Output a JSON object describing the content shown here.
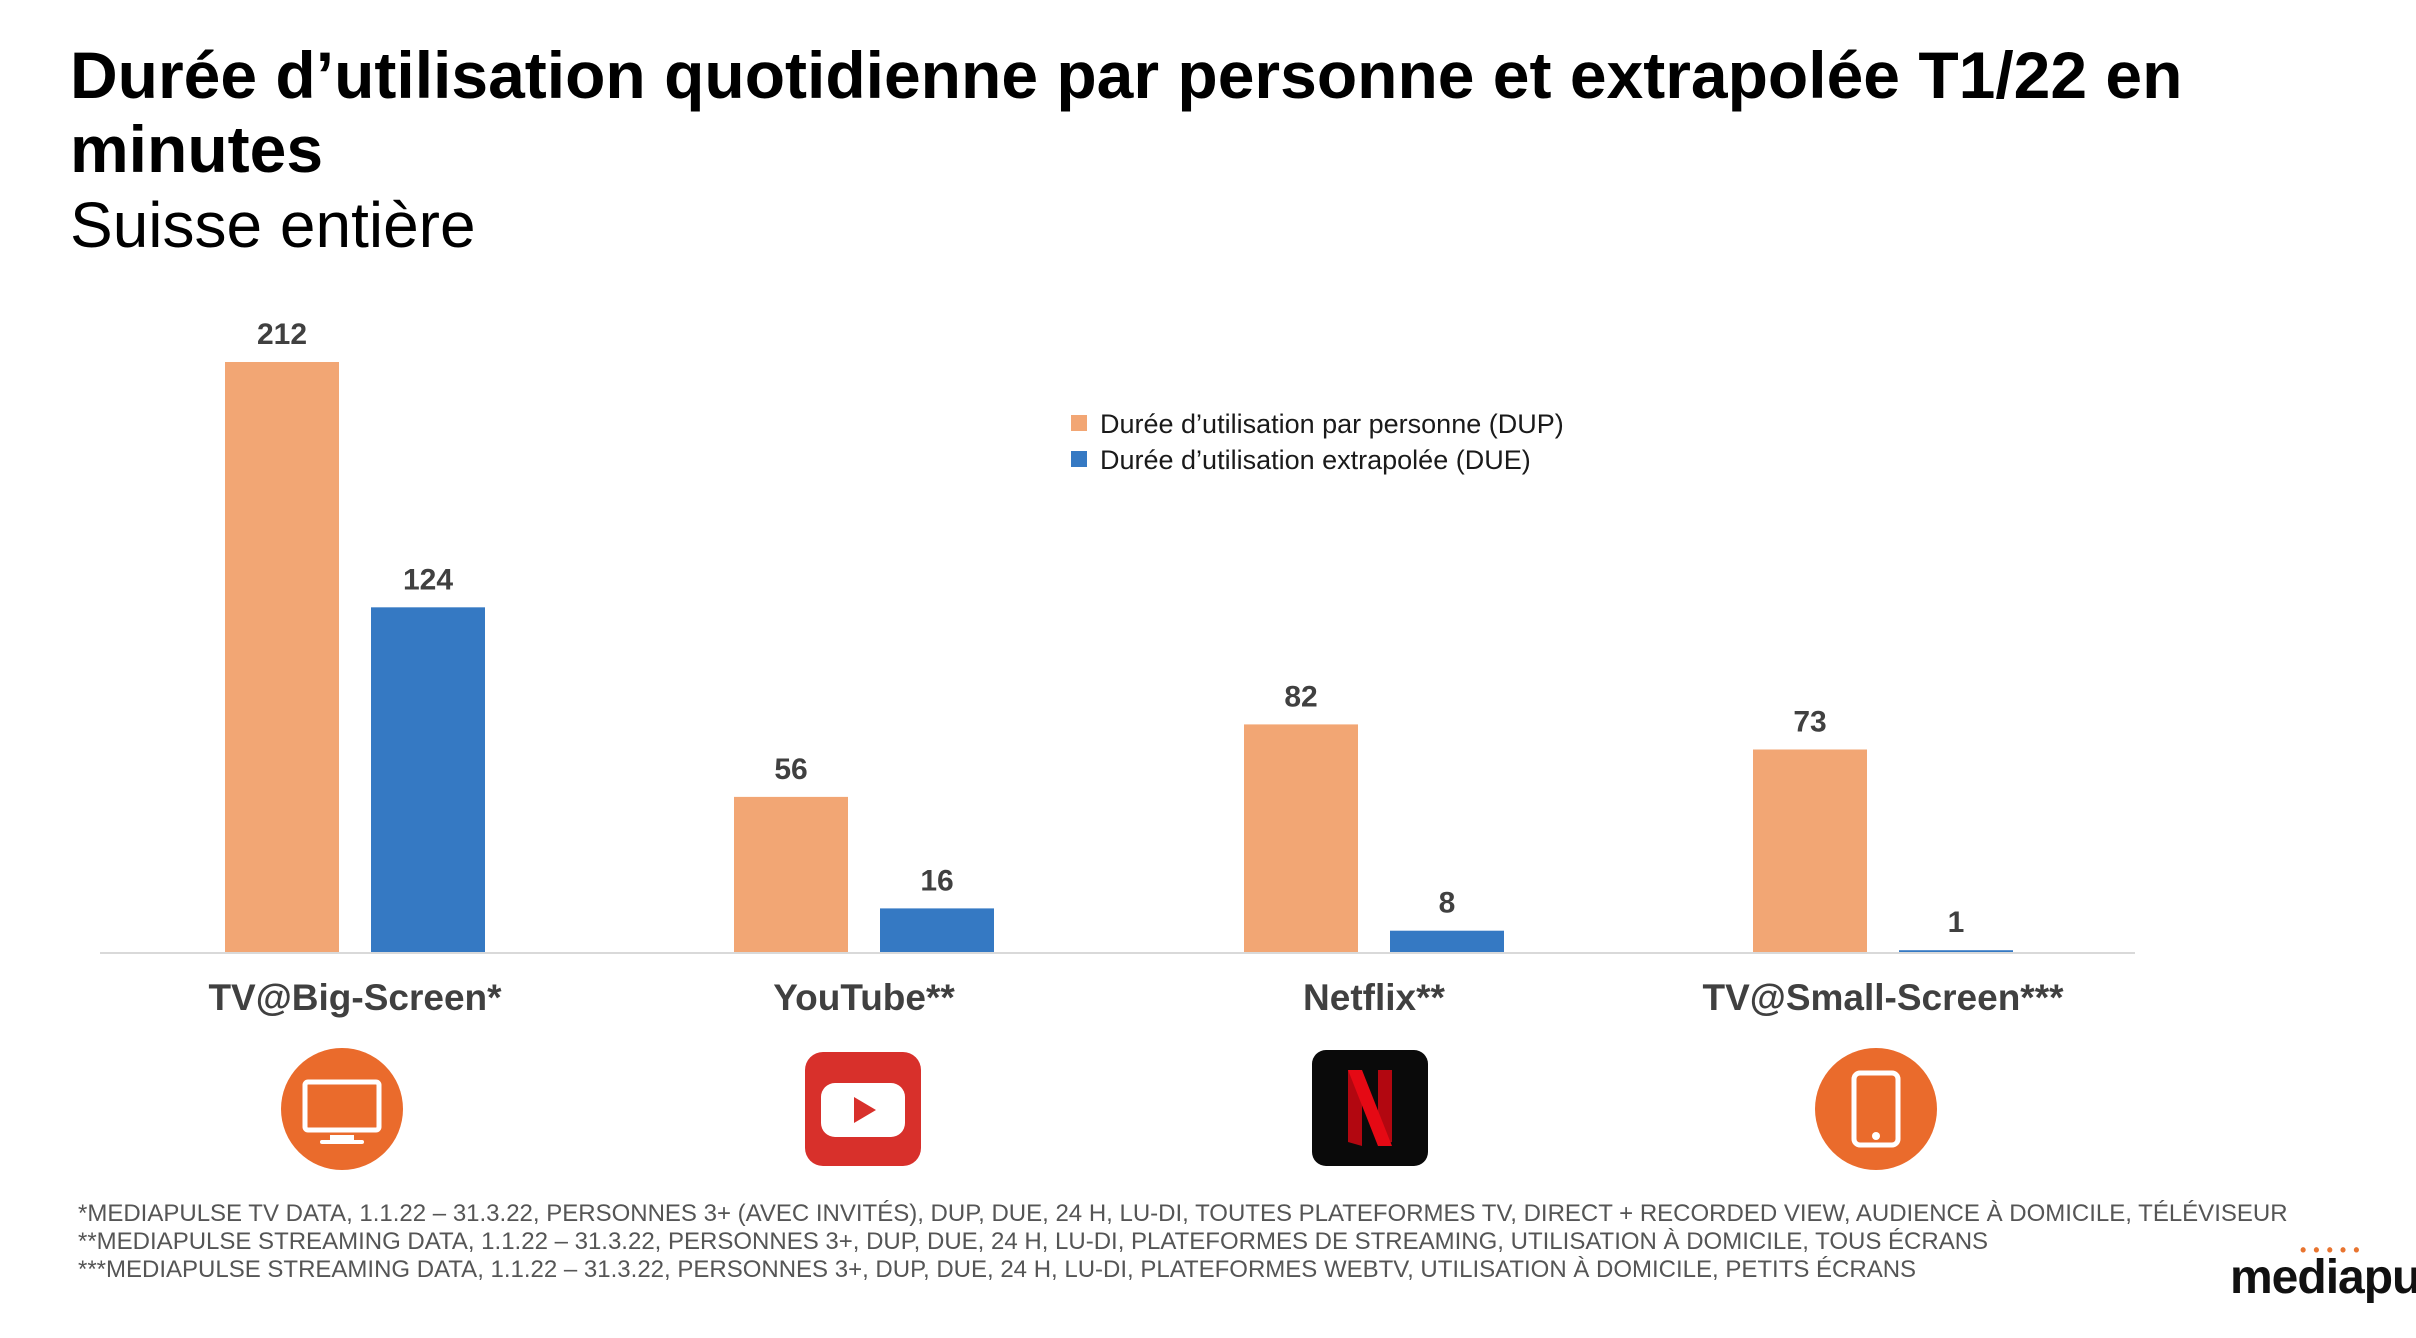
{
  "title": "Durée d’utilisation quotidienne par personne et extrapolée T1/22 en minutes",
  "subtitle": "Suisse entière",
  "chart_data": {
    "type": "bar",
    "categories": [
      "TV@Big-Screen*",
      "YouTube**",
      "Netflix**",
      "TV@Small-Screen***"
    ],
    "series": [
      {
        "name": "Durée d’utilisation par personne (DUP)",
        "values": [
          212,
          56,
          82,
          73
        ],
        "color": "#f2a674"
      },
      {
        "name": "Durée d’utilisation extrapolée (DUE)",
        "values": [
          124,
          16,
          8,
          1
        ],
        "color": "#3579c3"
      }
    ],
    "ylim": [
      0,
      212
    ],
    "grid": false,
    "legend": "top-center"
  },
  "icons": [
    {
      "name": "tv-icon",
      "color": "#ea6b2c"
    },
    {
      "name": "youtube-icon",
      "color": "#d8302b"
    },
    {
      "name": "netflix-icon",
      "color": "#e01e22"
    },
    {
      "name": "tablet-icon",
      "color": "#ea6b2c"
    }
  ],
  "footnotes": [
    "*MEDIAPULSE TV DATA, 1.1.22 – 31.3.22, PERSONNES 3+ (AVEC INVITÉS), DUP, DUE, 24 H, LU-DI, TOUTES PLATEFORMES TV, DIRECT + RECORDED VIEW, AUDIENCE À DOMICILE, TÉLÉVISEUR",
    "**MEDIAPULSE STREAMING DATA, 1.1.22 – 31.3.22, PERSONNES 3+, DUP, DUE, 24 H, LU-DI, PLATEFORMES DE STREAMING, UTILISATION À DOMICILE, TOUS ÉCRANS",
    "***MEDIAPULSE STREAMING DATA, 1.1.22 – 31.3.22, PERSONNES 3+, DUP, DUE, 24 H, LU-DI, PLATEFORMES WEBTV, UTILISATION À DOMICILE, PETITS ÉCRANS"
  ],
  "logo": "mediapulse"
}
